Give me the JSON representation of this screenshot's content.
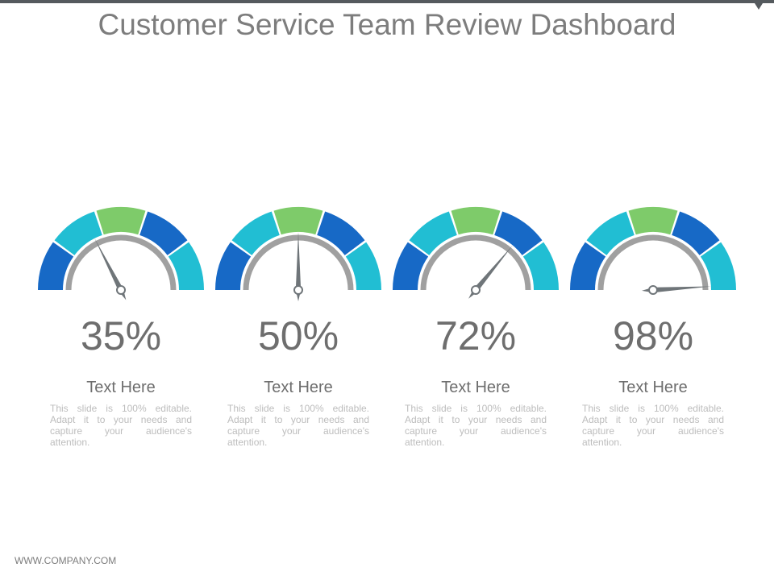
{
  "title": "Customer Service Team Review Dashboard",
  "footer": "WWW.COMPANY.COM",
  "colors": {
    "dark_blue": "#1769c6",
    "teal": "#21bed3",
    "green": "#7ecb6a",
    "ring_grey": "#a0a0a0",
    "needle": "#6f7579"
  },
  "gauges": [
    {
      "value_label": "35%",
      "value": 35,
      "heading": "Text Here",
      "description": "This slide is 100% editable. Adapt it to your needs and capture your audience's attention."
    },
    {
      "value_label": "50%",
      "value": 50,
      "heading": "Text Here",
      "description": "This slide is 100% editable. Adapt it to your needs and capture your audience's attention."
    },
    {
      "value_label": "72%",
      "value": 72,
      "heading": "Text Here",
      "description": "This slide is 100% editable. Adapt it to your needs and capture your audience's attention."
    },
    {
      "value_label": "98%",
      "value": 98,
      "heading": "Text Here",
      "description": "This slide is 100% editable. Adapt it to your needs and capture your audience's attention."
    }
  ]
}
